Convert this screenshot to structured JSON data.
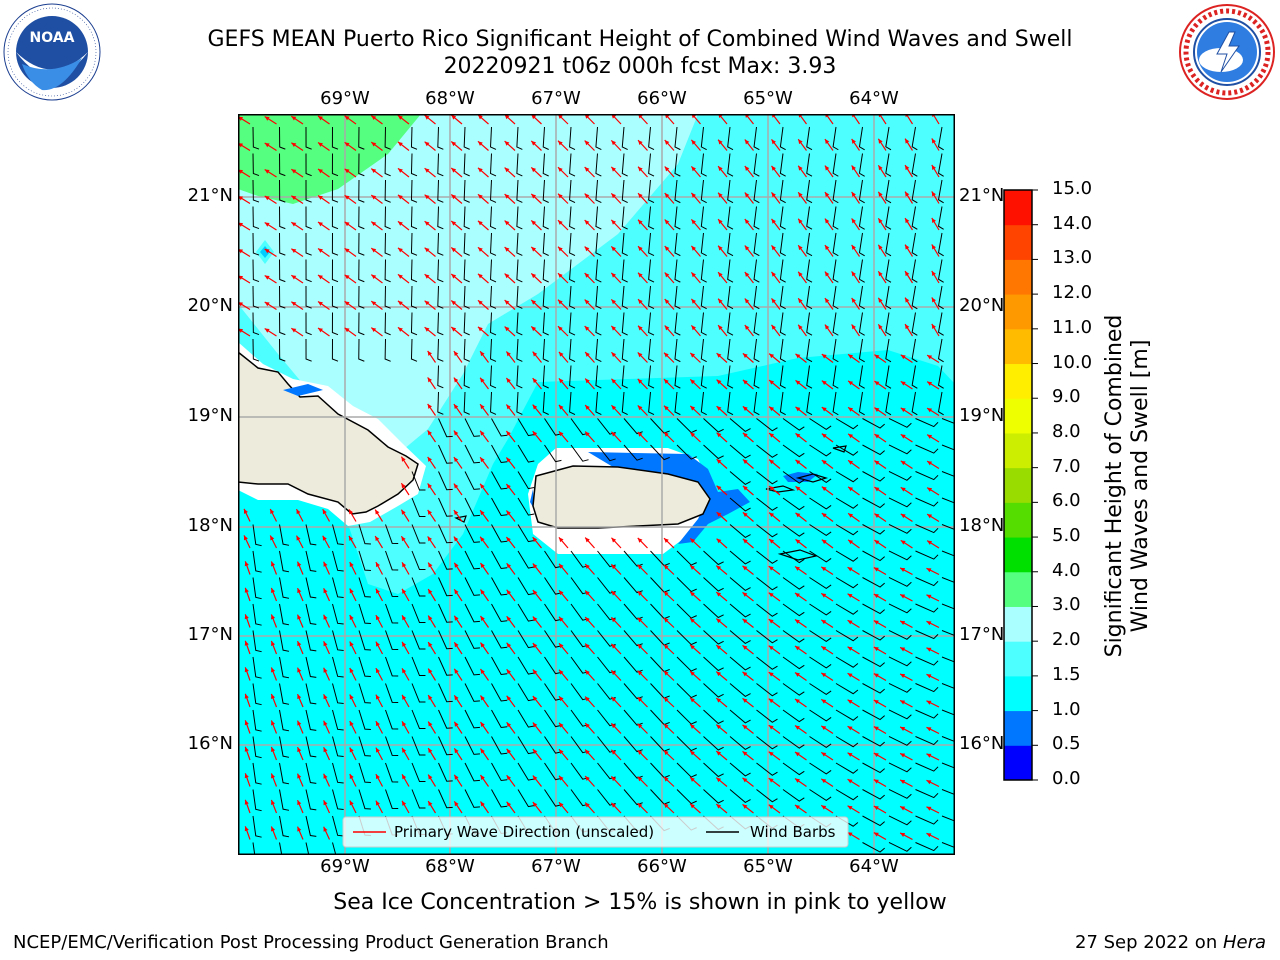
{
  "header": {
    "title_line1": "GEFS MEAN Puerto Rico Significant Height of Combined Wind Waves and Swell",
    "title_line2": "20220921 t06z 000h fcst   Max: 3.93"
  },
  "logos": {
    "noaa_text": "NOAA",
    "noaa_ring": "NATIONAL OCEANIC AND ATMOSPHERIC ADMINISTRATION · U.S. DEPARTMENT OF COMMERCE",
    "nws_ring": "NATIONAL WEATHER SERVICE"
  },
  "map": {
    "lon_labels": [
      "69°W",
      "68°W",
      "67°W",
      "66°W",
      "65°W",
      "64°W"
    ],
    "lat_labels": [
      "21°N",
      "20°N",
      "19°N",
      "18°N",
      "17°N",
      "16°N"
    ],
    "legend": {
      "primary_wave": "Primary Wave Direction (unscaled)",
      "wind_barbs": "Wind Barbs"
    },
    "land_color": "#edebdc",
    "ocean_colors": {
      "c1_1p5": "#00ffff",
      "c1p5_2": "#4dffff",
      "c2_3": "#aaffff",
      "c3_4": "#55ff7f",
      "c0p5_1": "#0077ff"
    },
    "wave_arrow_color": "#ff0000",
    "wind_barb_color": "#000000"
  },
  "colorbar": {
    "label_line1": "Significant Height of Combined",
    "label_line2": "Wind Waves and Swell [m]",
    "ticks": [
      "0.0",
      "0.5",
      "1.0",
      "1.5",
      "2.0",
      "3.0",
      "4.0",
      "5.0",
      "6.0",
      "7.0",
      "8.0",
      "9.0",
      "10.0",
      "11.0",
      "12.0",
      "13.0",
      "14.0",
      "15.0"
    ],
    "colors": [
      "#0000ff",
      "#0077ff",
      "#00ffff",
      "#4dffff",
      "#aaffff",
      "#55ff7f",
      "#00e000",
      "#55dd00",
      "#99dd00",
      "#ccee00",
      "#eeff00",
      "#ffee00",
      "#ffbb00",
      "#ff9900",
      "#ff7700",
      "#ff4400",
      "#ff1100"
    ]
  },
  "caption": "Sea Ice Concentration > 15% is shown in pink to yellow",
  "footer": {
    "left": "NCEP/EMC/Verification Post Processing Product Generation Branch",
    "right_date": "27 Sep 2022 on ",
    "right_host": "Hera"
  }
}
